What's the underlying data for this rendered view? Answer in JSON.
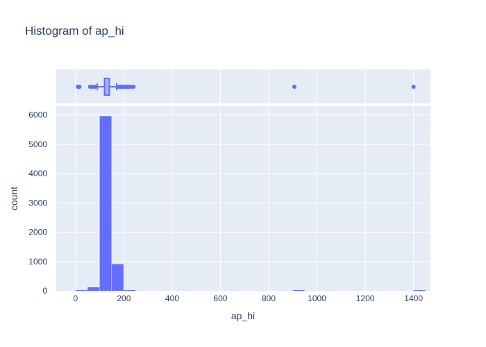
{
  "chart_data": {
    "type": "histogram",
    "title": "Histogram of ap_hi",
    "xlabel": "ap_hi",
    "ylabel": "count",
    "xlim": [
      -80,
      1470
    ],
    "ylim": [
      0,
      6300
    ],
    "x_ticks": [
      0,
      200,
      400,
      600,
      800,
      1000,
      1200,
      1400
    ],
    "y_ticks": [
      0,
      1000,
      2000,
      3000,
      4000,
      5000,
      6000
    ],
    "bins": [
      {
        "x0": 0,
        "x1": 50,
        "count": 4
      },
      {
        "x0": 50,
        "x1": 100,
        "count": 120
      },
      {
        "x0": 100,
        "x1": 150,
        "count": 5960
      },
      {
        "x0": 150,
        "x1": 200,
        "count": 910
      },
      {
        "x0": 200,
        "x1": 250,
        "count": 20
      },
      {
        "x0": 900,
        "x1": 950,
        "count": 1
      },
      {
        "x0": 1400,
        "x1": 1450,
        "count": 1
      }
    ],
    "box_marginal": {
      "q1": 120,
      "median": 120,
      "q3": 140,
      "lower_fence": 90,
      "upper_fence": 170,
      "outliers": [
        10,
        12,
        14,
        16,
        60,
        70,
        80,
        175,
        180,
        185,
        190,
        195,
        200,
        205,
        210,
        215,
        220,
        230,
        240,
        906,
        1400
      ]
    },
    "grid": true,
    "colors": {
      "bar": "#636efa",
      "plot_bg": "#e5ecf6",
      "grid": "#ffffff",
      "text": "#2a3f5f"
    }
  }
}
